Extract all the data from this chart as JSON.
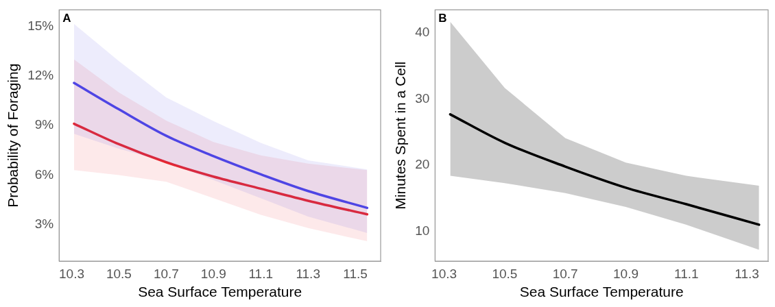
{
  "chart_data": [
    {
      "type": "line",
      "xlabel": "Sea Surface Temperature",
      "ylabel": "Probability of Foraging",
      "annotations": [
        "A"
      ],
      "xlim": [
        10.247,
        11.607
      ],
      "xticks": [
        10.3,
        10.5,
        10.7,
        10.9,
        11.1,
        11.3,
        11.5
      ],
      "ylim": [
        0.8,
        16
      ],
      "yticks": [
        {
          "value": 3,
          "label": "3%"
        },
        {
          "value": 6,
          "label": "6%"
        },
        {
          "value": 9,
          "label": "9%"
        },
        {
          "value": 12,
          "label": "12%"
        },
        {
          "value": 15,
          "label": "15%"
        }
      ],
      "grid": false,
      "legend": false,
      "marker": "none",
      "line_style": "solid",
      "series": [
        {
          "color": "#4f46e5",
          "x": [
            10.31,
            10.5,
            10.7,
            10.9,
            11.1,
            11.3,
            11.55
          ],
          "values": [
            11.58,
            9.98,
            8.38,
            7.15,
            6.05,
            5.04,
            4.02
          ],
          "upper": [
            15.15,
            12.9,
            10.7,
            9.27,
            7.95,
            6.9,
            6.35
          ],
          "lower": [
            8.5,
            7.6,
            6.8,
            5.7,
            4.6,
            3.5,
            2.5
          ]
        },
        {
          "color": "#e8282e",
          "x": [
            10.31,
            10.5,
            10.7,
            10.9,
            11.1,
            11.3,
            11.55
          ],
          "values": [
            9.11,
            7.87,
            6.78,
            5.91,
            5.18,
            4.45,
            3.63
          ],
          "upper": [
            13.0,
            11.0,
            9.3,
            8.0,
            7.2,
            6.7,
            6.3
          ],
          "lower": [
            6.3,
            6.0,
            5.6,
            4.6,
            3.6,
            2.8,
            2.0
          ]
        }
      ]
    },
    {
      "type": "line",
      "xlabel": "Sea Surface Temperature",
      "ylabel": "Minutes Spent in a Cell",
      "annotations": [
        "B"
      ],
      "xlim": [
        10.27,
        11.37
      ],
      "xticks": [
        10.3,
        10.5,
        10.7,
        10.9,
        11.1,
        11.3
      ],
      "ylim": [
        5.5,
        43.5
      ],
      "yticks": [
        10,
        20,
        30,
        40
      ],
      "grid": false,
      "legend": false,
      "marker": "none",
      "line_style": "solid",
      "series": [
        {
          "color": "#000000",
          "x": [
            10.32,
            10.5,
            10.7,
            10.9,
            11.1,
            11.34
          ],
          "values": [
            27.7,
            23.4,
            19.8,
            16.6,
            14.1,
            11.0
          ],
          "upper": [
            41.7,
            31.7,
            24.1,
            20.4,
            18.4,
            16.9
          ],
          "lower": [
            18.4,
            17.3,
            15.8,
            13.7,
            11.0,
            7.2
          ]
        }
      ]
    }
  ]
}
